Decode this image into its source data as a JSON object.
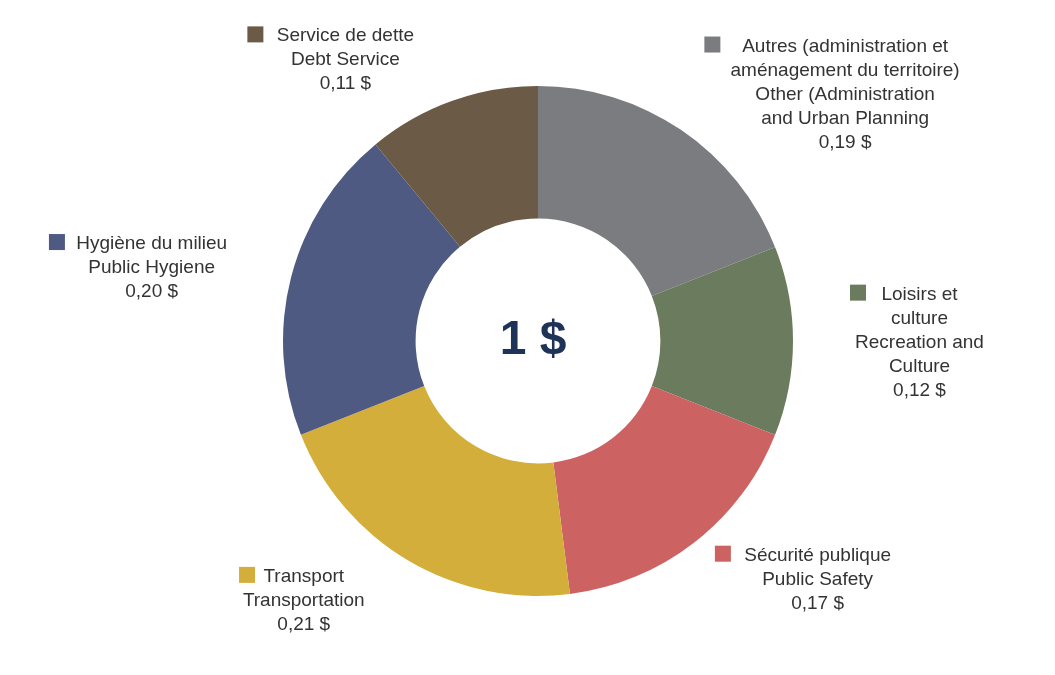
{
  "chart_data": {
    "type": "donut",
    "categories": [
      "Autres (administration et\naménagement du territoire)\nOther (Administration\nand Urban Planning",
      "Loisirs et\nculture\nRecreation and\nCulture",
      "Sécurité publique\nPublic Safety",
      "Transport\nTransportation",
      "Hygiène du milieu\nPublic Hygiene",
      "Service de dette\nDebt Service"
    ],
    "values": [
      0.19,
      0.12,
      0.17,
      0.21,
      0.2,
      0.11
    ],
    "legend": "top right",
    "value_labels": [
      "0,19 $",
      "0,12 $",
      "0,17 $",
      "0,21 $",
      "0,20 $",
      "0,11 $"
    ],
    "colors": [
      "#7b7c80",
      "#6b7b5e",
      "#cc6262",
      "#d4ae3a",
      "#4e5a82",
      "#6b5a45"
    ],
    "annotations": [
      "1 $"
    ]
  }
}
